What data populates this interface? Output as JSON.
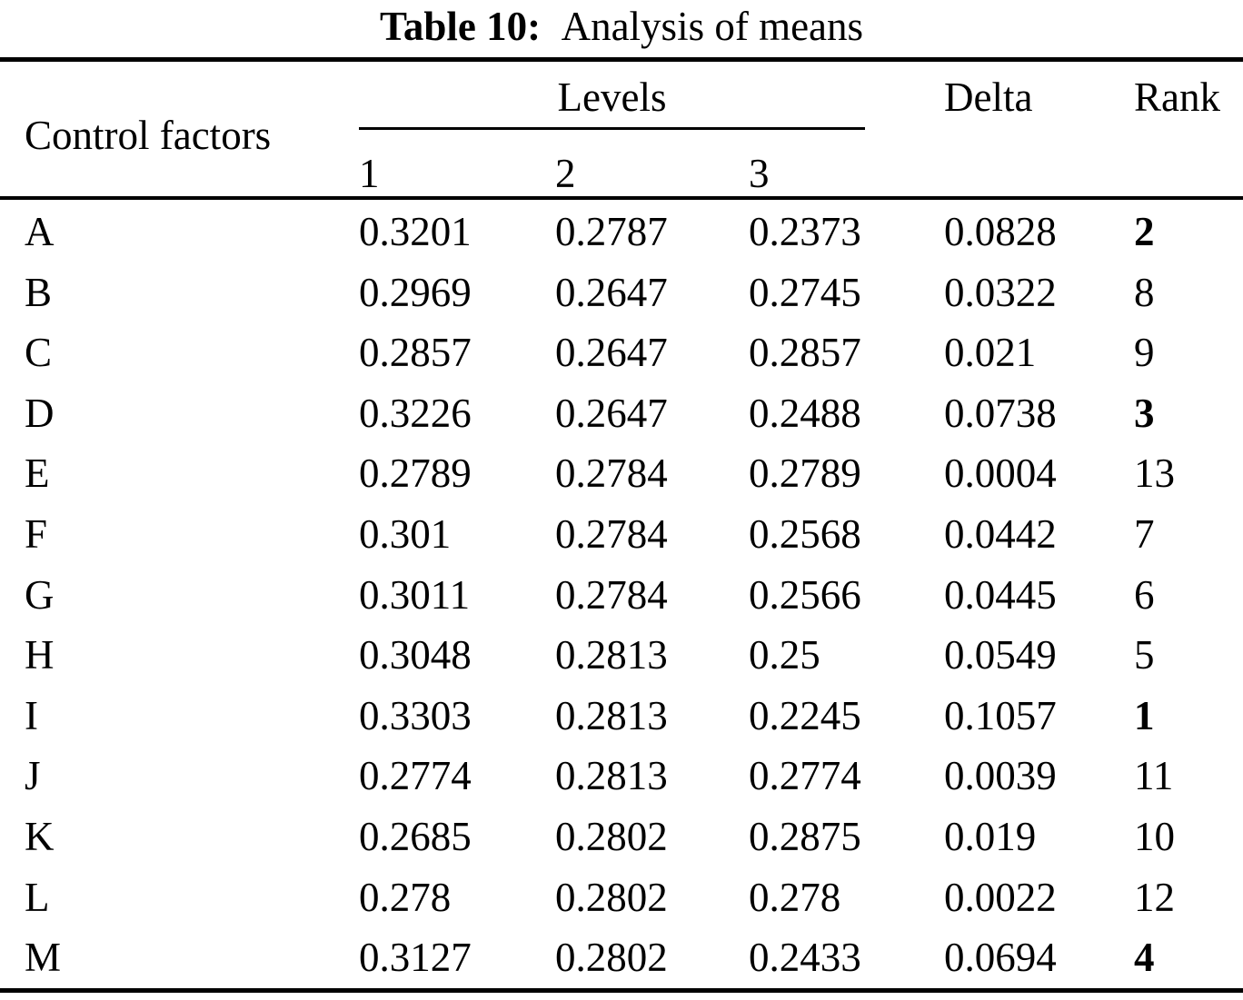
{
  "colors": {
    "text": "#000000",
    "background": "#ffffff"
  },
  "title": {
    "label": "Table 10:",
    "caption": "Analysis of means"
  },
  "header": {
    "control_factors": "Control factors",
    "levels": "Levels",
    "level_1": "1",
    "level_2": "2",
    "level_3": "3",
    "delta": "Delta",
    "rank": "Rank"
  },
  "table": {
    "columns": [
      "Control factors",
      "Levels 1",
      "Levels 2",
      "Levels 3",
      "Delta",
      "Rank"
    ],
    "rows": [
      {
        "factor": "A",
        "level1": "0.3201",
        "level2": "0.2787",
        "level3": "0.2373",
        "delta": "0.0828",
        "rank": "2",
        "rank_bold": true
      },
      {
        "factor": "B",
        "level1": "0.2969",
        "level2": "0.2647",
        "level3": "0.2745",
        "delta": "0.0322",
        "rank": "8",
        "rank_bold": false
      },
      {
        "factor": "C",
        "level1": "0.2857",
        "level2": "0.2647",
        "level3": "0.2857",
        "delta": "0.021",
        "rank": "9",
        "rank_bold": false
      },
      {
        "factor": "D",
        "level1": "0.3226",
        "level2": "0.2647",
        "level3": "0.2488",
        "delta": "0.0738",
        "rank": "3",
        "rank_bold": true
      },
      {
        "factor": "E",
        "level1": "0.2789",
        "level2": "0.2784",
        "level3": "0.2789",
        "delta": "0.0004",
        "rank": "13",
        "rank_bold": false
      },
      {
        "factor": "F",
        "level1": "0.301",
        "level2": "0.2784",
        "level3": "0.2568",
        "delta": "0.0442",
        "rank": "7",
        "rank_bold": false
      },
      {
        "factor": "G",
        "level1": "0.3011",
        "level2": "0.2784",
        "level3": "0.2566",
        "delta": "0.0445",
        "rank": "6",
        "rank_bold": false
      },
      {
        "factor": "H",
        "level1": "0.3048",
        "level2": "0.2813",
        "level3": "0.25",
        "delta": "0.0549",
        "rank": "5",
        "rank_bold": false
      },
      {
        "factor": "I",
        "level1": "0.3303",
        "level2": "0.2813",
        "level3": "0.2245",
        "delta": "0.1057",
        "rank": "1",
        "rank_bold": true
      },
      {
        "factor": "J",
        "level1": "0.2774",
        "level2": "0.2813",
        "level3": "0.2774",
        "delta": "0.0039",
        "rank": "11",
        "rank_bold": false
      },
      {
        "factor": "K",
        "level1": "0.2685",
        "level2": "0.2802",
        "level3": "0.2875",
        "delta": "0.019",
        "rank": "10",
        "rank_bold": false
      },
      {
        "factor": "L",
        "level1": "0.278",
        "level2": "0.2802",
        "level3": "0.278",
        "delta": "0.0022",
        "rank": "12",
        "rank_bold": false
      },
      {
        "factor": "M",
        "level1": "0.3127",
        "level2": "0.2802",
        "level3": "0.2433",
        "delta": "0.0694",
        "rank": "4",
        "rank_bold": true
      }
    ]
  }
}
